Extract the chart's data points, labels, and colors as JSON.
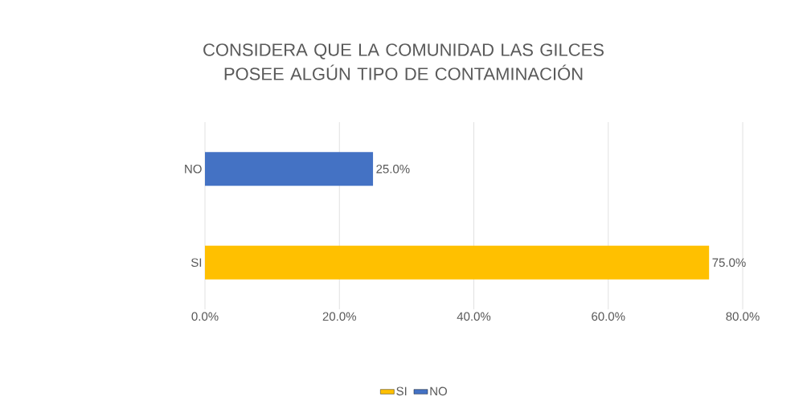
{
  "chart_data": {
    "type": "bar",
    "orientation": "horizontal",
    "title": "CONSIDERA QUE LA COMUNIDAD LAS GILCES POSEE ALGÚN TIPO DE CONTAMINACIÓN",
    "categories": [
      "NO",
      "SI"
    ],
    "series": [
      {
        "name": "SI",
        "color": "#ffc000",
        "values": [
          null,
          75.0
        ],
        "value_labels": [
          null,
          "75.0%"
        ]
      },
      {
        "name": "NO",
        "color": "#4472c4",
        "values": [
          25.0,
          null
        ],
        "value_labels": [
          "25.0%",
          null
        ]
      }
    ],
    "xlim": [
      0,
      80
    ],
    "xticks": [
      {
        "value": 0,
        "label": "0.0%"
      },
      {
        "value": 20,
        "label": "20.0%"
      },
      {
        "value": 40,
        "label": "40.0%"
      },
      {
        "value": 60,
        "label": "60.0%"
      },
      {
        "value": 80,
        "label": "80.0%"
      }
    ],
    "grid": "x",
    "legend": "bottom"
  }
}
